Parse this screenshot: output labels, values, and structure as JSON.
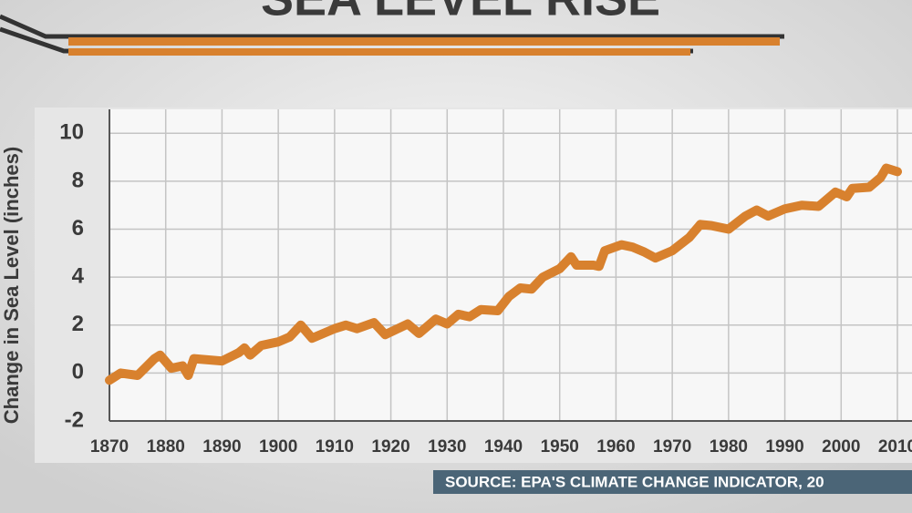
{
  "chart_data": {
    "type": "line",
    "title": "SEA LEVEL RISE",
    "y_label": "Change in Sea Level (inches)",
    "source": "SOURCE: EPA'S CLIMATE CHANGE INDICATOR, 20",
    "x": [
      1870,
      1872,
      1875,
      1878,
      1879,
      1881,
      1883,
      1884,
      1885,
      1890,
      1893,
      1894,
      1895,
      1897,
      1900,
      1902,
      1904,
      1906,
      1910,
      1912,
      1914,
      1917,
      1919,
      1923,
      1925,
      1928,
      1930,
      1932,
      1934,
      1936,
      1939,
      1941,
      1943,
      1945,
      1947,
      1950,
      1952,
      1953,
      1956,
      1957,
      1958,
      1961,
      1963,
      1965,
      1967,
      1970,
      1973,
      1975,
      1977,
      1980,
      1983,
      1985,
      1987,
      1990,
      1993,
      1996,
      1999,
      2001,
      2002,
      2005,
      2007,
      2008,
      2010
    ],
    "series": [
      {
        "name": "Sea level",
        "color": "#d8812e",
        "values": [
          -0.3,
          0,
          -0.1,
          0.6,
          0.75,
          0.2,
          0.3,
          -0.1,
          0.6,
          0.5,
          0.85,
          1.05,
          0.75,
          1.15,
          1.3,
          1.5,
          2.0,
          1.45,
          1.85,
          2.0,
          1.85,
          2.1,
          1.6,
          2.05,
          1.65,
          2.25,
          2.05,
          2.45,
          2.35,
          2.65,
          2.6,
          3.2,
          3.55,
          3.5,
          4.0,
          4.35,
          4.85,
          4.5,
          4.5,
          4.45,
          5.1,
          5.35,
          5.25,
          5.05,
          4.8,
          5.1,
          5.65,
          6.2,
          6.15,
          6.0,
          6.55,
          6.8,
          6.55,
          6.85,
          7.0,
          6.95,
          7.55,
          7.35,
          7.7,
          7.75,
          8.15,
          8.55,
          8.4
        ]
      }
    ],
    "xlim": [
      1870,
      2010
    ],
    "xticks": [
      1870,
      1880,
      1890,
      1900,
      1910,
      1920,
      1930,
      1940,
      1950,
      1960,
      1970,
      1980,
      1990,
      2000,
      2010
    ],
    "ylim": [
      -2,
      11
    ],
    "yticks": [
      -2,
      0,
      2,
      4,
      6,
      8,
      10
    ],
    "grid": true
  }
}
